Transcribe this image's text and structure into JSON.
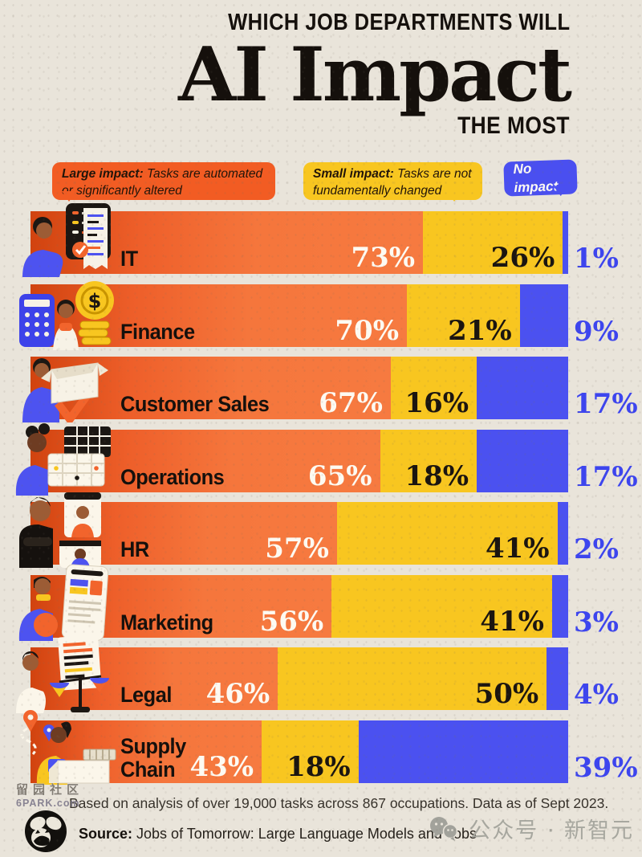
{
  "title": {
    "line1": "WHICH JOB DEPARTMENTS WILL",
    "line2": "AI Impact",
    "line3": "THE MOST"
  },
  "legend": {
    "large": {
      "bold": "Large impact:",
      "rest": " Tasks are automated or significantly altered"
    },
    "small": {
      "bold": "Small impact:",
      "rest": " Tasks are not fundamentally changed"
    },
    "none": {
      "bold": "No impact",
      "rest": ""
    }
  },
  "chart_data": {
    "type": "bar",
    "orientation": "horizontal",
    "stacked": true,
    "unit": "%",
    "xlim": [
      0,
      100
    ],
    "series": [
      {
        "name": "Large impact",
        "color": "#f2642c"
      },
      {
        "name": "Small impact",
        "color": "#f8c620"
      },
      {
        "name": "No impact",
        "color": "#4b51f0"
      }
    ],
    "categories": [
      "IT",
      "Finance",
      "Customer Sales",
      "Operations",
      "HR",
      "Marketing",
      "Legal",
      "Supply Chain"
    ],
    "rows": [
      {
        "label": "IT",
        "icon": "it-developer-checklist-illustration",
        "values": {
          "large": 73,
          "small": 26,
          "none": 1
        },
        "display": {
          "large": "73%",
          "small": "26%",
          "none": "1%"
        }
      },
      {
        "label": "Finance",
        "icon": "finance-calculator-coins-illustration",
        "values": {
          "large": 70,
          "small": 21,
          "none": 9
        },
        "display": {
          "large": "70%",
          "small": "21%",
          "none": "9%"
        }
      },
      {
        "label": "Customer Sales",
        "icon": "customer-sales-box-illustration",
        "values": {
          "large": 67,
          "small": 16,
          "none": 17
        },
        "display": {
          "large": "67%",
          "small": "16%",
          "none": "17%"
        }
      },
      {
        "label": "Operations",
        "icon": "operations-schedule-illustration",
        "values": {
          "large": 65,
          "small": 18,
          "none": 17
        },
        "display": {
          "large": "65%",
          "small": "18%",
          "none": "17%"
        }
      },
      {
        "label": "HR",
        "icon": "hr-video-call-illustration",
        "values": {
          "large": 57,
          "small": 41,
          "none": 2
        },
        "display": {
          "large": "57%",
          "small": "41%",
          "none": "2%"
        }
      },
      {
        "label": "Marketing",
        "icon": "marketing-content-illustration",
        "values": {
          "large": 56,
          "small": 41,
          "none": 3
        },
        "display": {
          "large": "56%",
          "small": "41%",
          "none": "3%"
        }
      },
      {
        "label": "Legal",
        "icon": "legal-scales-illustration",
        "values": {
          "large": 46,
          "small": 50,
          "none": 4
        },
        "display": {
          "large": "46%",
          "small": "50%",
          "none": "4%"
        }
      },
      {
        "label": "Supply Chain",
        "icon": "supply-chain-logistics-illustration",
        "values": {
          "large": 43,
          "small": 18,
          "none": 39
        },
        "display": {
          "large": "43%",
          "small": "18%",
          "none": "39%"
        }
      }
    ]
  },
  "footnote": "Based on analysis of over 19,000 tasks across 867 occupations. Data as of Sept 2023.",
  "source": {
    "label": "Source:",
    "text": " Jobs of Tomorrow: Large Language Models and Jobs",
    "logo": "visual-capitalist-logo"
  },
  "watermarks": {
    "site_line1": "留园社区",
    "site_line2": "6PARK.com",
    "wechat_icon": "wechat-icon",
    "wechat_text": "公众号 · 新智元"
  },
  "colors": {
    "background": "#e9e4da",
    "large_impact": "#f2642c",
    "large_impact_dark": "#d1430f",
    "small_impact": "#f8c620",
    "no_impact": "#4b51f0",
    "no_impact_label_text": "#3d45ee",
    "ink": "#1b1510"
  }
}
